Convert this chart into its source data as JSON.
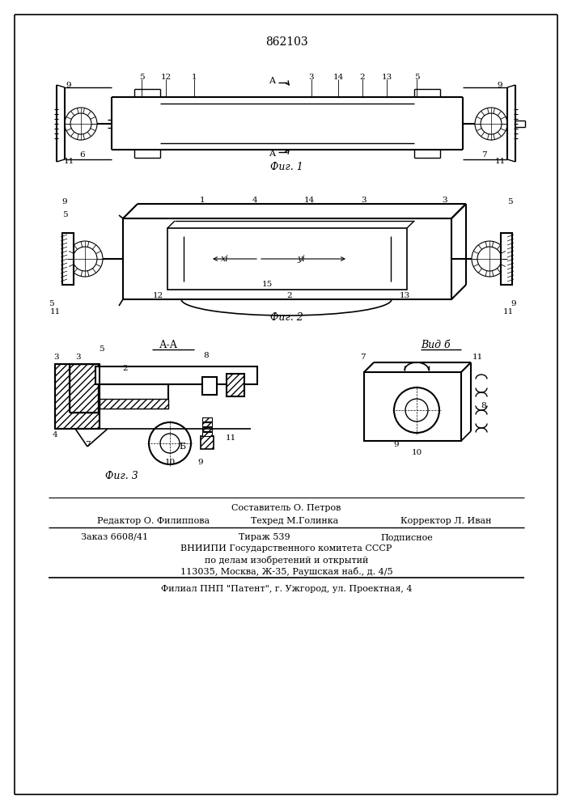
{
  "patent_number": "862103",
  "bg": "#ffffff",
  "lc": "#000000",
  "footer": [
    "Составитель О. Петров",
    "Редактор О. Филиппова",
    "Техред М.Голинка",
    "Корректор Л. Иван",
    "Заказ 6608/41",
    "Тираж 539",
    "Подписное",
    "ВНИИПИ Государственного комитета СССР",
    "по делам изобретений и открытий",
    "113035, Москва, Ж-35, Раушская наб., д. 4/5",
    "Филиал ПНП \"Патент\", г. Ужгород, ул. Проектная, 4"
  ]
}
